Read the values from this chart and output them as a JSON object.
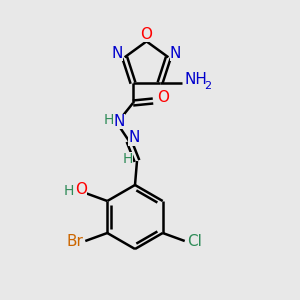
{
  "bg_color": "#e8e8e8",
  "C": "#000000",
  "N": "#0000cc",
  "O": "#ff0000",
  "H": "#2e8b57",
  "Br": "#cc6600",
  "Cl": "#2e8b57",
  "bond": "#000000",
  "lw": 1.8,
  "fs": 11
}
